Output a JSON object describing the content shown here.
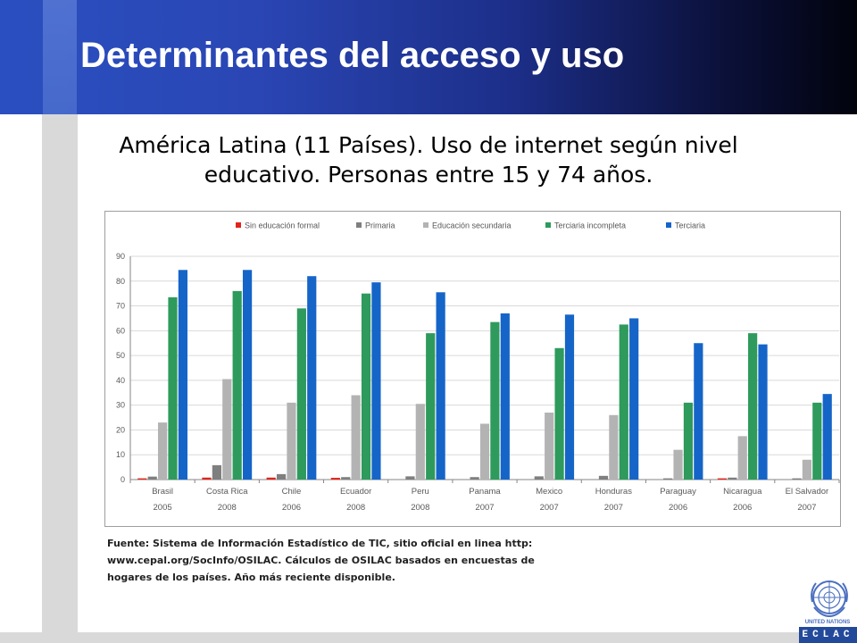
{
  "slide": {
    "title": "Determinantes del acceso y uso",
    "source_note": "Fuente: Sistema de Información Estadístico de TIC, sitio oficial en linea http: www.cepal.org/SocInfo/OSILAC. Cálculos de OSILAC basados en encuestas de hogares de los países. Año más reciente disponible.",
    "logo_label": "UNITED NATIONS",
    "brand_text": "ECLAC"
  },
  "chart_data": {
    "type": "bar",
    "title": "América Latina (11 Países). Uso de internet según nivel educativo. Personas entre 15 y 74 años.",
    "xlabel": "",
    "ylabel": "",
    "ylim": [
      0,
      90
    ],
    "yticks": [
      0,
      10,
      20,
      30,
      40,
      50,
      60,
      70,
      80,
      90
    ],
    "grid": true,
    "legend_position": "top",
    "categories": [
      "Brasil",
      "Costa Rica",
      "Chile",
      "Ecuador",
      "Peru",
      "Panama",
      "Mexico",
      "Honduras",
      "Paraguay",
      "Nicaragua",
      "El Salvador"
    ],
    "category_years": [
      "2005",
      "2008",
      "2006",
      "2008",
      "2008",
      "2007",
      "2007",
      "2007",
      "2006",
      "2006",
      "2007"
    ],
    "series": [
      {
        "name": "Sin educación formal",
        "color": "#e2231a",
        "values": [
          0.5,
          0.8,
          0.8,
          0.7,
          0.0,
          0.0,
          0.0,
          0.0,
          0.0,
          0.5,
          0.0
        ]
      },
      {
        "name": "Primaria",
        "color": "#7f7f7f",
        "values": [
          1.2,
          5.8,
          2.2,
          1.0,
          1.3,
          1.0,
          1.3,
          1.5,
          0.5,
          0.8,
          0.5
        ]
      },
      {
        "name": "Educación secundaria",
        "color": "#b3b3b3",
        "values": [
          23,
          40.5,
          31,
          34,
          30.5,
          22.5,
          27,
          26,
          12,
          17.5,
          8
        ]
      },
      {
        "name": "Terciaria incompleta",
        "color": "#2e9a5c",
        "values": [
          73.5,
          76,
          69,
          75,
          59,
          63.5,
          53,
          62.5,
          31,
          59,
          31
        ]
      },
      {
        "name": "Terciaria",
        "color": "#1565c8",
        "values": [
          84.5,
          84.5,
          82,
          79.5,
          75.5,
          67,
          66.5,
          65,
          55,
          54.5,
          34.5
        ]
      }
    ]
  }
}
